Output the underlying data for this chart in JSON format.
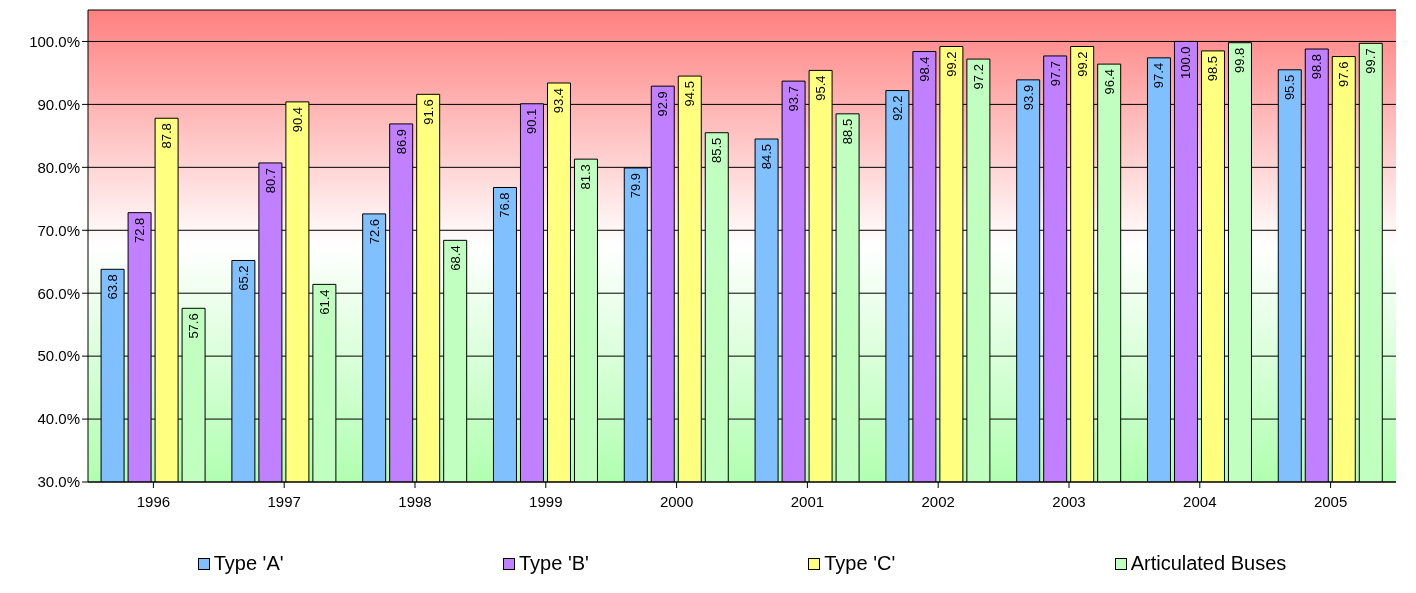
{
  "chart_data": {
    "type": "bar",
    "categories": [
      "1996",
      "1997",
      "1998",
      "1999",
      "2000",
      "2001",
      "2002",
      "2003",
      "2004",
      "2005"
    ],
    "series": [
      {
        "name": "Type 'A'",
        "color": "#80c0ff",
        "values": [
          63.8,
          65.2,
          72.6,
          76.8,
          79.9,
          84.5,
          92.2,
          93.9,
          97.4,
          95.5
        ],
        "value_labels": [
          "63.8",
          "65.2",
          "72.6",
          "76.8",
          "79.9",
          "84.5",
          "92.2",
          "93.9",
          "97.4",
          "95.5"
        ]
      },
      {
        "name": "Type 'B'",
        "color": "#c080ff",
        "values": [
          72.8,
          80.7,
          86.9,
          90.1,
          92.9,
          93.7,
          98.4,
          97.7,
          100.0,
          98.8
        ],
        "value_labels": [
          "72.8",
          "80.7",
          "86.9",
          "90.1",
          "92.9",
          "93.7",
          "98.4",
          "97.7",
          "100.0",
          "98.8"
        ]
      },
      {
        "name": "Type 'C'",
        "color": "#ffff80",
        "values": [
          87.8,
          90.4,
          91.6,
          93.4,
          94.5,
          95.4,
          99.2,
          99.2,
          98.5,
          97.6
        ],
        "value_labels": [
          "87.8",
          "90.4",
          "91.6",
          "93.4",
          "94.5",
          "95.4",
          "99.2",
          "99.2",
          "98.5",
          "97.6"
        ]
      },
      {
        "name": "Articulated Buses",
        "color": "#c0ffc0",
        "values": [
          57.6,
          61.4,
          68.4,
          81.3,
          85.5,
          88.5,
          97.2,
          96.4,
          99.8,
          99.7
        ],
        "value_labels": [
          "57.6",
          "61.4",
          "68.4",
          "81.3",
          "85.5",
          "88.5",
          "97.2",
          "96.4",
          "99.8",
          "99.7"
        ]
      }
    ],
    "ylim": [
      30,
      105
    ],
    "yticks": [
      {
        "value": 30,
        "label": "30.0%"
      },
      {
        "value": 40,
        "label": "40.0%"
      },
      {
        "value": 50,
        "label": "50.0%"
      },
      {
        "value": 60,
        "label": "60.0%"
      },
      {
        "value": 70,
        "label": "70.0%"
      },
      {
        "value": 80,
        "label": "80.0%"
      },
      {
        "value": 90,
        "label": "90.0%"
      },
      {
        "value": 100,
        "label": "100.0%"
      }
    ],
    "grid": "y",
    "legend": "bottom"
  }
}
